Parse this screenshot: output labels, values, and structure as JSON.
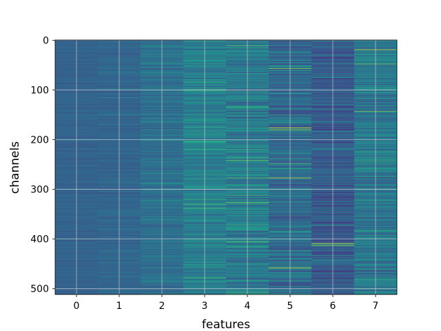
{
  "chart_data": {
    "type": "heatmap",
    "title": "",
    "xlabel": "features",
    "ylabel": "channels",
    "x_ticks": [
      "0",
      "1",
      "2",
      "3",
      "4",
      "5",
      "6",
      "7"
    ],
    "y_ticks": [
      "0",
      "100",
      "200",
      "300",
      "400",
      "500"
    ],
    "x_range": [
      -0.5,
      7.5
    ],
    "y_range": [
      -0.5,
      511.5
    ],
    "rows": 512,
    "columns": 8,
    "colormap": "viridis",
    "grid": true,
    "y_axis_inverted": true,
    "column_mean_intensity": [
      0.32,
      0.33,
      0.37,
      0.44,
      0.41,
      0.35,
      0.29,
      0.4
    ],
    "column_variation": [
      0.04,
      0.05,
      0.08,
      0.12,
      0.15,
      0.14,
      0.12,
      0.14
    ],
    "highlights": [
      {
        "column": 4,
        "row": 11,
        "value": 0.75
      },
      {
        "column": 4,
        "row": 220,
        "value": 0.65
      },
      {
        "column": 4,
        "row": 405,
        "value": 0.75
      },
      {
        "column": 5,
        "row": 57,
        "value": 0.85
      },
      {
        "column": 5,
        "row": 176,
        "value": 0.95
      },
      {
        "column": 5,
        "row": 180,
        "value": 0.9
      },
      {
        "column": 5,
        "row": 248,
        "value": 0.75
      },
      {
        "column": 5,
        "row": 277,
        "value": 0.95
      },
      {
        "column": 5,
        "row": 458,
        "value": 0.95
      },
      {
        "column": 6,
        "row": 409,
        "value": 0.95
      },
      {
        "column": 6,
        "row": 413,
        "value": 0.85
      },
      {
        "column": 7,
        "row": 19,
        "value": 0.95
      },
      {
        "column": 7,
        "row": 48,
        "value": 0.8
      },
      {
        "column": 7,
        "row": 143,
        "value": 0.8
      },
      {
        "column": 3,
        "row": 100,
        "value": 0.7
      },
      {
        "column": 3,
        "row": 204,
        "value": 0.65
      },
      {
        "column": 2,
        "row": 180,
        "value": 0.6
      }
    ]
  }
}
